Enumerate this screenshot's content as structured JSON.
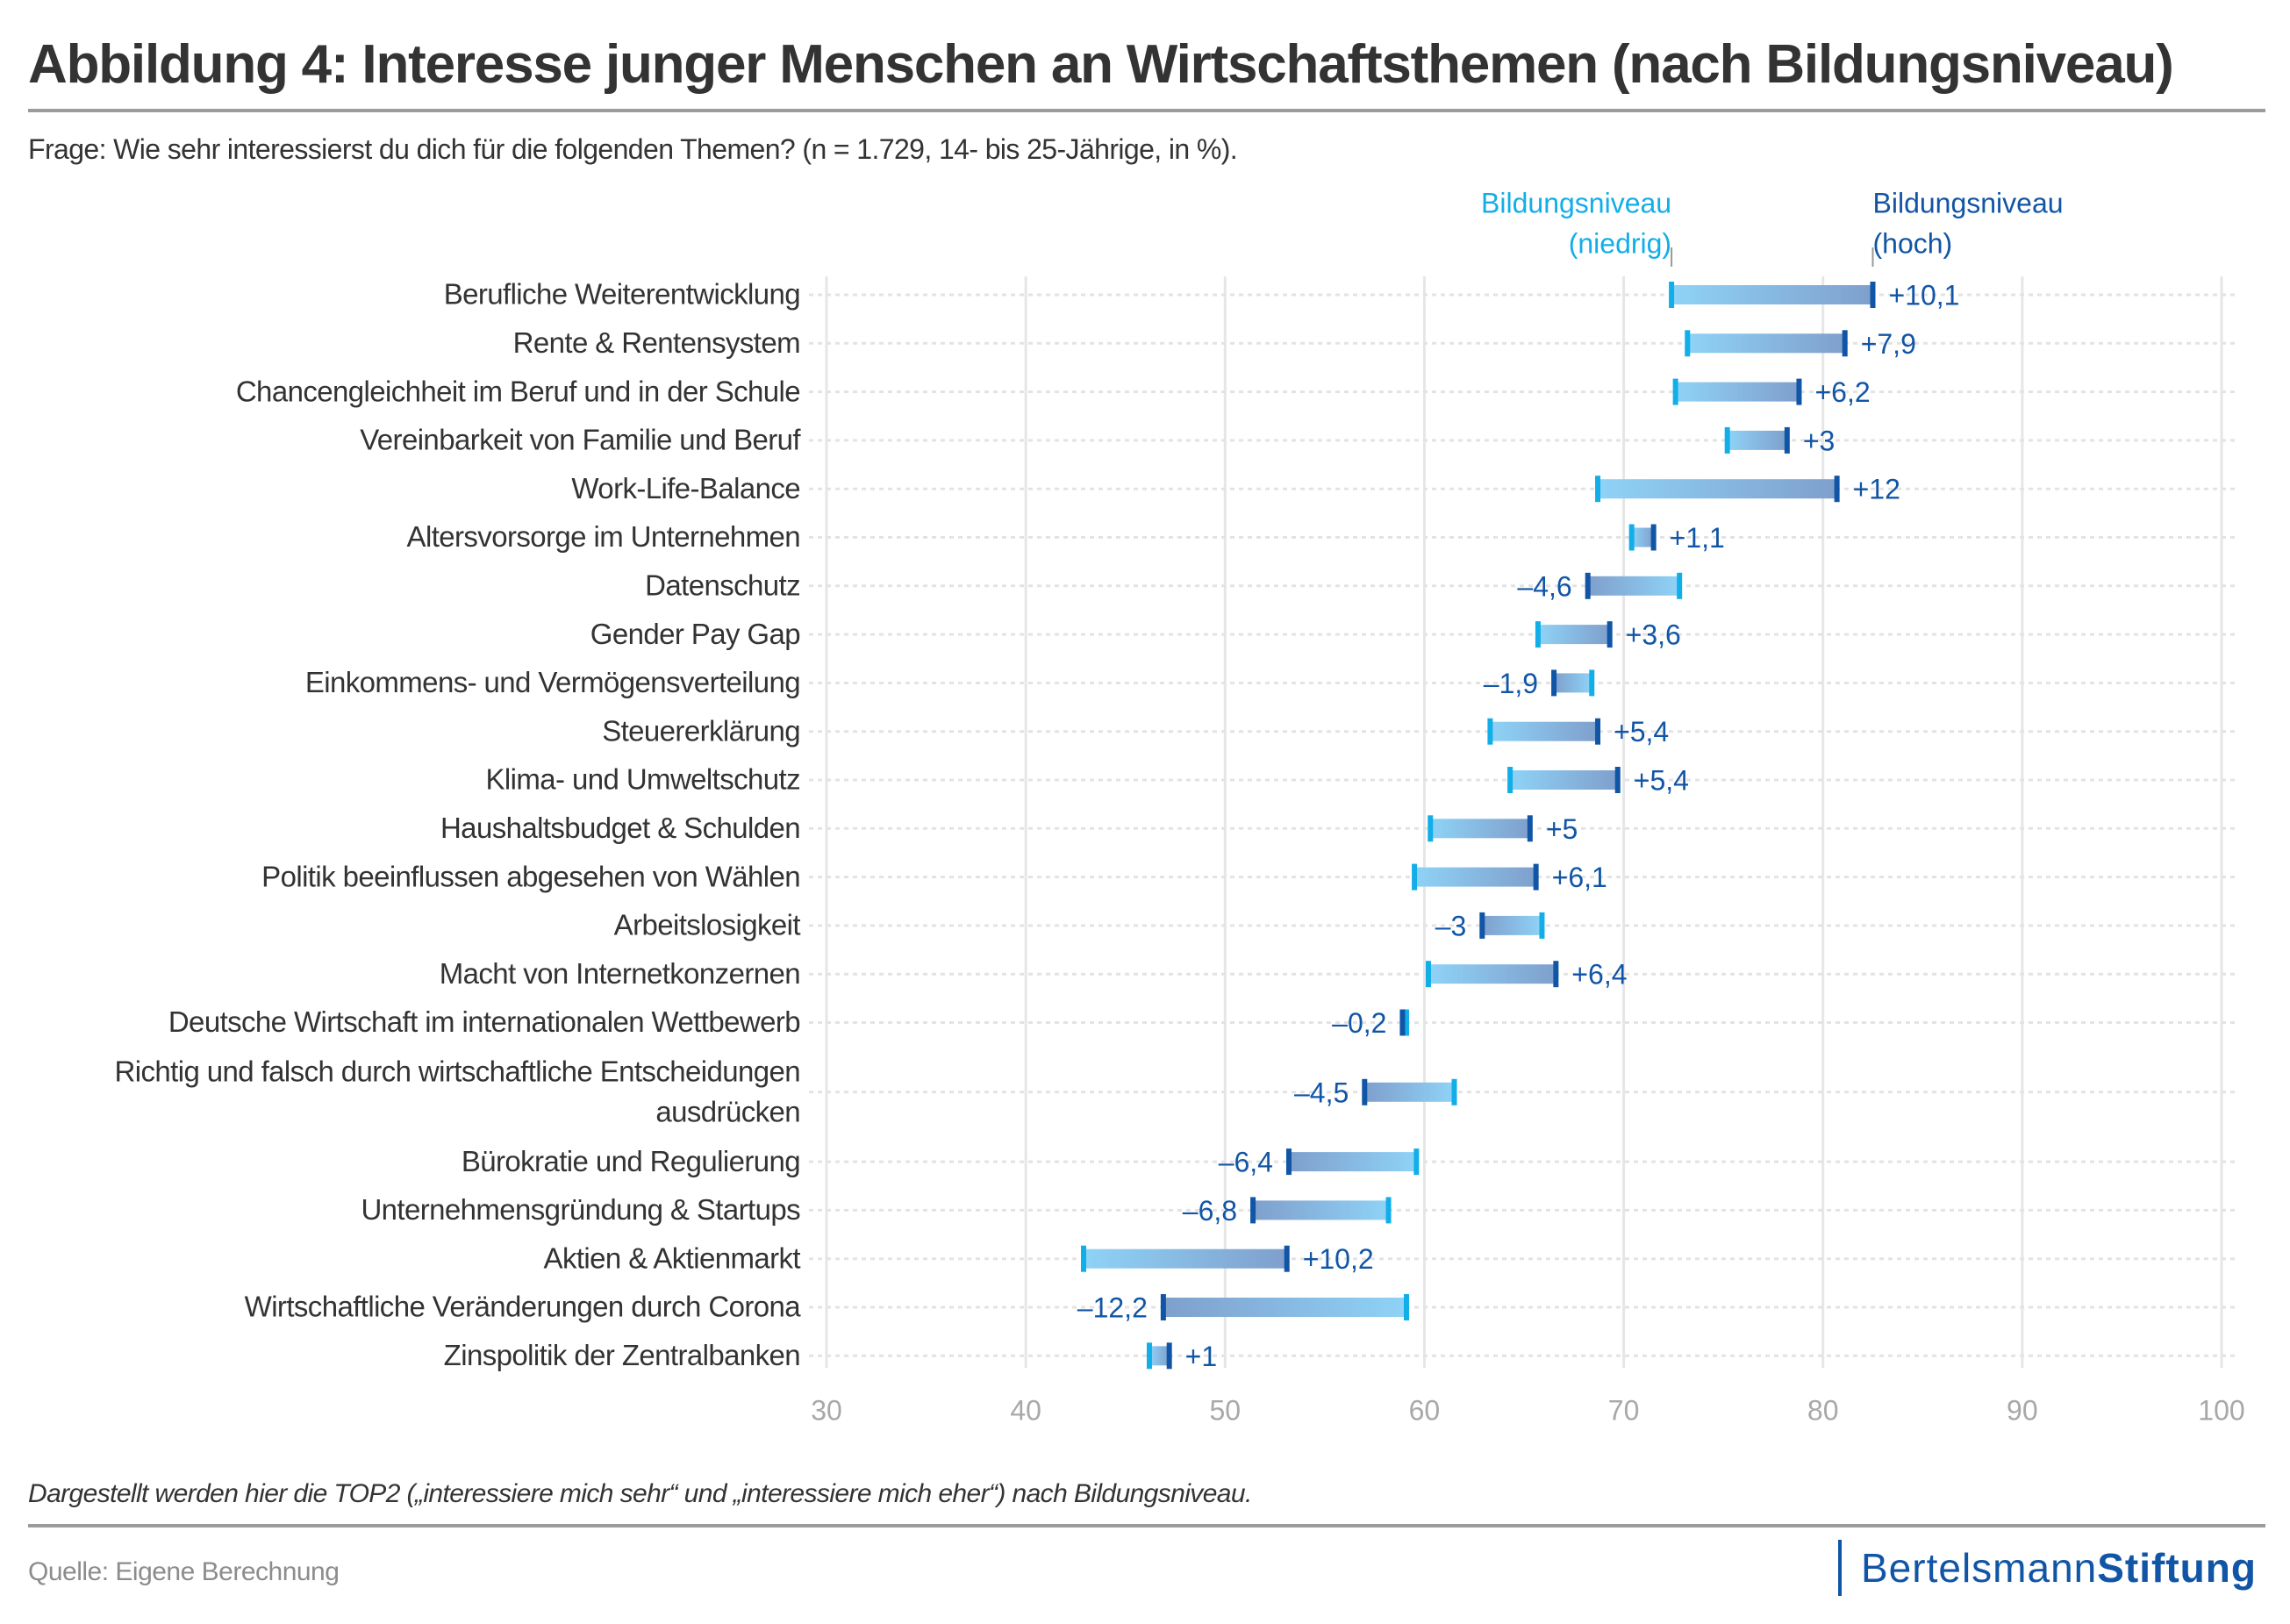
{
  "header": {
    "title": "Abbildung 4: Interesse junger Menschen an Wirtschaftsthemen (nach Bildungsniveau)",
    "subtitle": "Frage: Wie sehr interessierst du dich für die folgenden Themen? (n = 1.729, 14- bis 25-Jährige, in %)."
  },
  "footer": {
    "note": "Dargestellt werden hier die TOP2 („interessiere mich sehr“ und „interessiere mich eher“) nach Bildungsniveau.",
    "source": "Quelle: Eigene Berechnung",
    "logo_regular": "Bertelsmann",
    "logo_bold": "Stiftung"
  },
  "colors": {
    "low": "#12aee8",
    "high": "#1155a6",
    "bar_low": "#8fd3f7",
    "bar_high": "#7f9fcc",
    "grid": "#e6e6e6",
    "tick": "#a8a8a8"
  },
  "chart_data": {
    "type": "dumbbell",
    "title": "Interesse junger Menschen an Wirtschaftsthemen (nach Bildungsniveau)",
    "xlabel": "",
    "ylabel": "",
    "unit": "%",
    "xlim": [
      30,
      100
    ],
    "xticks": [
      30,
      40,
      50,
      60,
      70,
      80,
      90,
      100
    ],
    "grid": true,
    "legend_position": "top-right",
    "series": [
      {
        "name": "Bildungsniveau (niedrig)",
        "key": "low",
        "legend_lines": [
          "Bildungsniveau",
          "(niedrig)"
        ]
      },
      {
        "name": "Bildungsniveau (hoch)",
        "key": "high",
        "legend_lines": [
          "Bildungsniveau",
          "(hoch)"
        ]
      }
    ],
    "rows": [
      {
        "lines": [
          "Berufliche Weiterentwicklung"
        ],
        "low": 72.4,
        "high": 82.5,
        "diff": "+10,1"
      },
      {
        "lines": [
          "Rente & Rentensystem"
        ],
        "low": 73.2,
        "high": 81.1,
        "diff": "+7,9"
      },
      {
        "lines": [
          "Chancengleichheit im Beruf und in der Schule"
        ],
        "low": 72.6,
        "high": 78.8,
        "diff": "+6,2"
      },
      {
        "lines": [
          "Vereinbarkeit von Familie und Beruf"
        ],
        "low": 75.2,
        "high": 78.2,
        "diff": "+3"
      },
      {
        "lines": [
          "Work-Life-Balance"
        ],
        "low": 68.7,
        "high": 80.7,
        "diff": "+12"
      },
      {
        "lines": [
          "Altersvorsorge im Unternehmen"
        ],
        "low": 70.4,
        "high": 71.5,
        "diff": "+1,1"
      },
      {
        "lines": [
          "Datenschutz"
        ],
        "low": 72.8,
        "high": 68.2,
        "diff": "–4,6"
      },
      {
        "lines": [
          "Gender Pay Gap"
        ],
        "low": 65.7,
        "high": 69.3,
        "diff": "+3,6"
      },
      {
        "lines": [
          "Einkommens- und Vermögensverteilung"
        ],
        "low": 68.4,
        "high": 66.5,
        "diff": "–1,9"
      },
      {
        "lines": [
          "Steuererklärung"
        ],
        "low": 63.3,
        "high": 68.7,
        "diff": "+5,4"
      },
      {
        "lines": [
          "Klima- und Umweltschutz"
        ],
        "low": 64.3,
        "high": 69.7,
        "diff": "+5,4"
      },
      {
        "lines": [
          "Haushaltsbudget & Schulden"
        ],
        "low": 60.3,
        "high": 65.3,
        "diff": "+5"
      },
      {
        "lines": [
          "Politik beeinflussen abgesehen von Wählen"
        ],
        "low": 59.5,
        "high": 65.6,
        "diff": "+6,1"
      },
      {
        "lines": [
          "Arbeitslosigkeit"
        ],
        "low": 65.9,
        "high": 62.9,
        "diff": "–3"
      },
      {
        "lines": [
          "Macht von Internetkonzernen"
        ],
        "low": 60.2,
        "high": 66.6,
        "diff": "+6,4"
      },
      {
        "lines": [
          "Deutsche Wirtschaft im internationalen Wettbewerb"
        ],
        "low": 59.1,
        "high": 58.9,
        "diff": "–0,2"
      },
      {
        "lines": [
          "Richtig und falsch durch wirtschaftliche Entscheidungen",
          "ausdrücken"
        ],
        "low": 61.5,
        "high": 57.0,
        "diff": "–4,5"
      },
      {
        "lines": [
          "Bürokratie und Regulierung"
        ],
        "low": 59.6,
        "high": 53.2,
        "diff": "–6,4"
      },
      {
        "lines": [
          "Unternehmensgründung & Startups"
        ],
        "low": 58.2,
        "high": 51.4,
        "diff": "–6,8"
      },
      {
        "lines": [
          "Aktien & Aktienmarkt"
        ],
        "low": 42.9,
        "high": 53.1,
        "diff": "+10,2"
      },
      {
        "lines": [
          "Wirtschaftliche Veränderungen durch Corona"
        ],
        "low": 59.1,
        "high": 46.9,
        "diff": "–12,2"
      },
      {
        "lines": [
          "Zinspolitik der Zentralbanken"
        ],
        "low": 46.2,
        "high": 47.2,
        "diff": "+1"
      }
    ]
  }
}
